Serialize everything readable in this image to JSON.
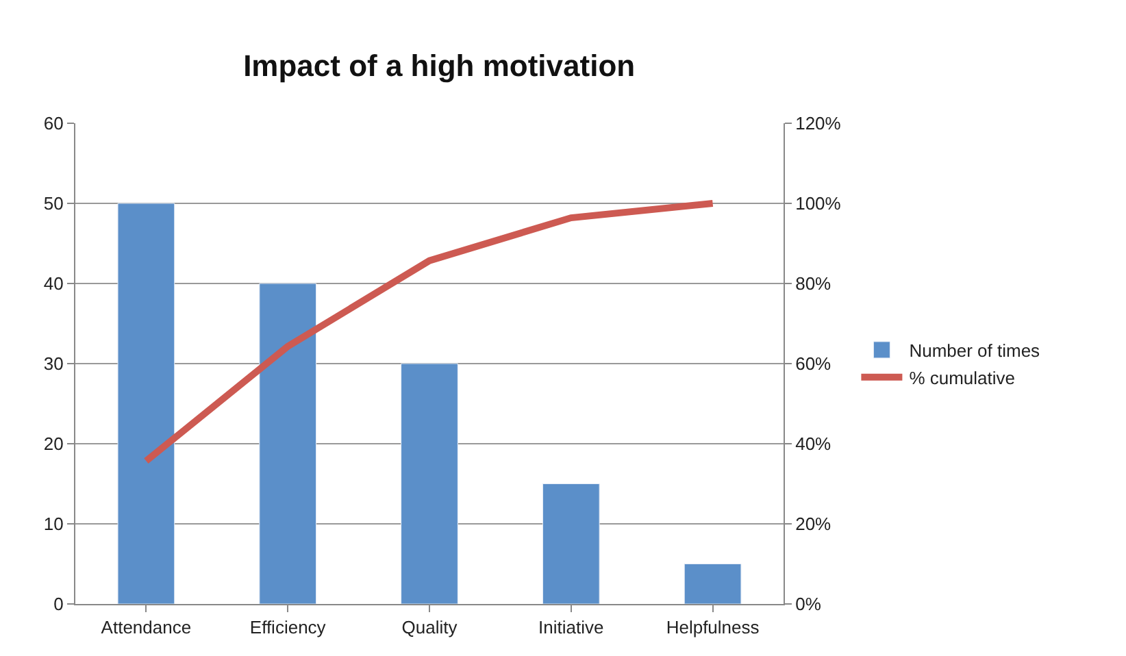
{
  "chart_data": {
    "type": "bar",
    "title": "Impact of a high motivation",
    "categories": [
      "Attendance",
      "Efficiency",
      "Quality",
      "Initiative",
      "Helpfulness"
    ],
    "series": [
      {
        "name": "Number of times",
        "color": "#5b8fc9",
        "values": [
          50,
          40,
          30,
          15,
          5
        ]
      },
      {
        "name": "% cumulative",
        "color": "#cd5a52",
        "type": "line",
        "axis": "y2",
        "values": [
          35.7,
          64.3,
          85.7,
          96.4,
          100
        ]
      }
    ],
    "ylim": [
      0,
      60
    ],
    "yticks": [
      0,
      10,
      20,
      30,
      40,
      50,
      60
    ],
    "y2lim": [
      0,
      120
    ],
    "y2ticks": [
      {
        "value": 0,
        "label": "0%"
      },
      {
        "value": 20,
        "label": "20%"
      },
      {
        "value": 40,
        "label": "40%"
      },
      {
        "value": 60,
        "label": "60%"
      },
      {
        "value": 80,
        "label": "80%"
      },
      {
        "value": 100,
        "label": "100%"
      },
      {
        "value": 120,
        "label": "120%"
      }
    ],
    "grid": "y",
    "legend": "right",
    "marker": "none"
  }
}
